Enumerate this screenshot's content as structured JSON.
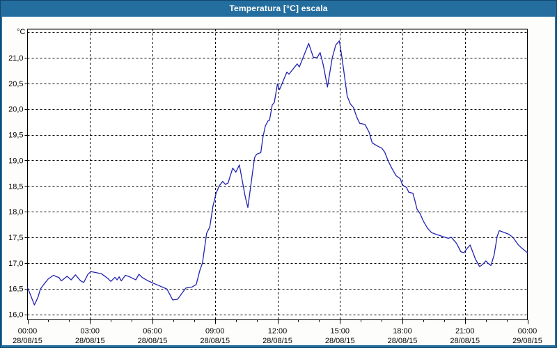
{
  "window": {
    "title": "Temperatura [°C] escala"
  },
  "colors": {
    "titlebar": "#236e9e",
    "frame_outline": "#12456e",
    "content_bg": "#fdfdfb",
    "plot_bg": "#ffffff",
    "plot_border": "#000000",
    "grid": "#000000",
    "axis_text": "#000000",
    "title_text": "#ffffff",
    "line": "#2222b2"
  },
  "chart_data": {
    "type": "line",
    "title": "Temperatura [°C] escala",
    "unit_label": "°C",
    "grid": "dashed",
    "legend": "none",
    "x_axis": {
      "kind": "time",
      "hours_range": [
        0,
        24
      ],
      "minor_tick_hours": 1,
      "major_tick_hours": 3,
      "ticks": [
        {
          "hour": 0,
          "time": "00:00",
          "date": "28/08/15"
        },
        {
          "hour": 3,
          "time": "03:00",
          "date": "28/08/15"
        },
        {
          "hour": 6,
          "time": "06:00",
          "date": "28/08/15"
        },
        {
          "hour": 9,
          "time": "09:00",
          "date": "28/08/15"
        },
        {
          "hour": 12,
          "time": "12:00",
          "date": "28/08/15"
        },
        {
          "hour": 15,
          "time": "15:00",
          "date": "28/08/15"
        },
        {
          "hour": 18,
          "time": "18:00",
          "date": "28/08/15"
        },
        {
          "hour": 21,
          "time": "21:00",
          "date": "28/08/15"
        },
        {
          "hour": 24,
          "time": "00:00",
          "date": "29/08/15"
        }
      ]
    },
    "y_axis": {
      "range": [
        15.88,
        21.56
      ],
      "gridline_values": [
        16.0,
        16.5,
        17.0,
        17.5,
        18.0,
        18.5,
        19.0,
        19.5,
        20.0,
        20.5,
        21.0,
        21.5
      ],
      "ticks": [
        {
          "value": 16.0,
          "label": "16,0"
        },
        {
          "value": 16.5,
          "label": "16,5"
        },
        {
          "value": 17.0,
          "label": "17,0"
        },
        {
          "value": 17.5,
          "label": "17,5"
        },
        {
          "value": 18.0,
          "label": "18,0"
        },
        {
          "value": 18.5,
          "label": "18,5"
        },
        {
          "value": 19.0,
          "label": "19,0"
        },
        {
          "value": 19.5,
          "label": "19,5"
        },
        {
          "value": 20.0,
          "label": "20,0"
        },
        {
          "value": 20.5,
          "label": "20,5"
        },
        {
          "value": 21.0,
          "label": "21,0"
        }
      ]
    },
    "series": [
      {
        "name": "Temperatura",
        "color": "#2222b2",
        "points": [
          [
            0.0,
            16.52
          ],
          [
            0.17,
            16.35
          ],
          [
            0.33,
            16.18
          ],
          [
            0.5,
            16.33
          ],
          [
            0.62,
            16.49
          ],
          [
            0.78,
            16.58
          ],
          [
            1.0,
            16.69
          ],
          [
            1.25,
            16.76
          ],
          [
            1.4,
            16.73
          ],
          [
            1.5,
            16.72
          ],
          [
            1.62,
            16.65
          ],
          [
            1.9,
            16.74
          ],
          [
            2.1,
            16.67
          ],
          [
            2.3,
            16.77
          ],
          [
            2.55,
            16.65
          ],
          [
            2.7,
            16.62
          ],
          [
            2.9,
            16.78
          ],
          [
            3.05,
            16.83
          ],
          [
            3.3,
            16.81
          ],
          [
            3.55,
            16.79
          ],
          [
            3.85,
            16.7
          ],
          [
            4.0,
            16.64
          ],
          [
            4.2,
            16.72
          ],
          [
            4.3,
            16.67
          ],
          [
            4.4,
            16.73
          ],
          [
            4.5,
            16.65
          ],
          [
            4.7,
            16.76
          ],
          [
            4.9,
            16.73
          ],
          [
            5.2,
            16.67
          ],
          [
            5.35,
            16.78
          ],
          [
            5.5,
            16.72
          ],
          [
            5.75,
            16.66
          ],
          [
            6.0,
            16.61
          ],
          [
            6.3,
            16.56
          ],
          [
            6.7,
            16.49
          ],
          [
            6.97,
            16.28
          ],
          [
            7.2,
            16.29
          ],
          [
            7.6,
            16.51
          ],
          [
            7.9,
            16.53
          ],
          [
            8.1,
            16.58
          ],
          [
            8.27,
            16.85
          ],
          [
            8.4,
            17.0
          ],
          [
            8.6,
            17.58
          ],
          [
            8.75,
            17.7
          ],
          [
            8.9,
            18.1
          ],
          [
            9.05,
            18.35
          ],
          [
            9.2,
            18.5
          ],
          [
            9.37,
            18.59
          ],
          [
            9.5,
            18.53
          ],
          [
            9.63,
            18.56
          ],
          [
            9.85,
            18.85
          ],
          [
            10.0,
            18.77
          ],
          [
            10.17,
            18.91
          ],
          [
            10.45,
            18.3
          ],
          [
            10.58,
            18.08
          ],
          [
            10.75,
            18.6
          ],
          [
            10.9,
            19.05
          ],
          [
            11.0,
            19.12
          ],
          [
            11.2,
            19.15
          ],
          [
            11.3,
            19.45
          ],
          [
            11.42,
            19.67
          ],
          [
            11.55,
            19.77
          ],
          [
            11.62,
            19.78
          ],
          [
            11.75,
            20.08
          ],
          [
            11.85,
            20.13
          ],
          [
            12.0,
            20.49
          ],
          [
            12.1,
            20.38
          ],
          [
            12.45,
            20.72
          ],
          [
            12.55,
            20.68
          ],
          [
            12.95,
            20.88
          ],
          [
            13.05,
            20.82
          ],
          [
            13.5,
            21.28
          ],
          [
            13.72,
            21.01
          ],
          [
            13.9,
            21.0
          ],
          [
            14.05,
            21.1
          ],
          [
            14.2,
            20.86
          ],
          [
            14.4,
            20.43
          ],
          [
            14.63,
            21.0
          ],
          [
            14.8,
            21.25
          ],
          [
            14.97,
            21.33
          ],
          [
            15.1,
            21.0
          ],
          [
            15.2,
            20.7
          ],
          [
            15.35,
            20.25
          ],
          [
            15.5,
            20.1
          ],
          [
            15.65,
            20.03
          ],
          [
            15.8,
            19.85
          ],
          [
            15.95,
            19.72
          ],
          [
            16.2,
            19.7
          ],
          [
            16.4,
            19.55
          ],
          [
            16.55,
            19.34
          ],
          [
            16.8,
            19.28
          ],
          [
            17.0,
            19.24
          ],
          [
            17.15,
            19.16
          ],
          [
            17.3,
            19.0
          ],
          [
            17.5,
            18.84
          ],
          [
            17.7,
            18.7
          ],
          [
            17.9,
            18.64
          ],
          [
            18.0,
            18.52
          ],
          [
            18.2,
            18.47
          ],
          [
            18.3,
            18.38
          ],
          [
            18.5,
            18.36
          ],
          [
            18.6,
            18.21
          ],
          [
            18.7,
            18.05
          ],
          [
            18.85,
            17.96
          ],
          [
            19.0,
            17.82
          ],
          [
            19.2,
            17.68
          ],
          [
            19.4,
            17.59
          ],
          [
            19.6,
            17.56
          ],
          [
            19.9,
            17.52
          ],
          [
            20.2,
            17.48
          ],
          [
            20.35,
            17.5
          ],
          [
            20.6,
            17.38
          ],
          [
            20.8,
            17.22
          ],
          [
            20.95,
            17.2
          ],
          [
            21.1,
            17.28
          ],
          [
            21.25,
            17.35
          ],
          [
            21.5,
            17.08
          ],
          [
            21.7,
            16.93
          ],
          [
            21.85,
            16.97
          ],
          [
            22.0,
            17.04
          ],
          [
            22.15,
            16.98
          ],
          [
            22.25,
            16.95
          ],
          [
            22.4,
            17.15
          ],
          [
            22.55,
            17.52
          ],
          [
            22.65,
            17.63
          ],
          [
            22.85,
            17.6
          ],
          [
            23.1,
            17.56
          ],
          [
            23.3,
            17.5
          ],
          [
            23.55,
            17.36
          ],
          [
            23.7,
            17.3
          ],
          [
            23.85,
            17.25
          ],
          [
            24.0,
            17.2
          ]
        ]
      }
    ]
  }
}
